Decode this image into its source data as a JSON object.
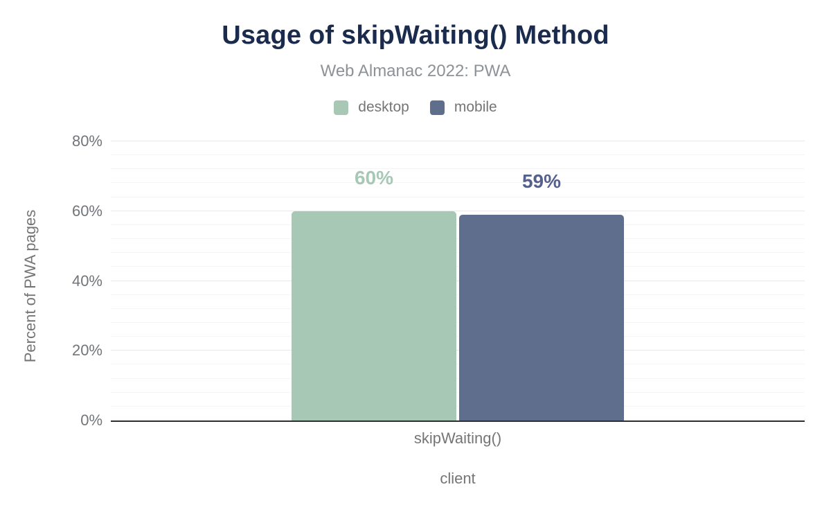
{
  "chart_data": {
    "type": "bar",
    "title": "Usage of skipWaiting() Method",
    "subtitle": "Web Almanac 2022: PWA",
    "categories": [
      "skipWaiting()"
    ],
    "series": [
      {
        "name": "desktop",
        "values": [
          60
        ],
        "value_labels": [
          "60%"
        ],
        "color": "#a6c8b5",
        "label_color": "#a6c8b5"
      },
      {
        "name": "mobile",
        "values": [
          59
        ],
        "value_labels": [
          "59%"
        ],
        "color": "#5e6e8c",
        "label_color": "#55618a"
      }
    ],
    "xlabel": "client",
    "ylabel": "Percent of PWA pages",
    "ylim": [
      0,
      80
    ],
    "yticks": [
      {
        "label": "0%",
        "value": 0
      },
      {
        "label": "20%",
        "value": 20
      },
      {
        "label": "40%",
        "value": 40
      },
      {
        "label": "60%",
        "value": 60
      },
      {
        "label": "80%",
        "value": 80
      }
    ],
    "major_grid_step": 20,
    "minor_grid_step": 4,
    "grid": true,
    "legend_position": "top",
    "axis_line_color": "#2e2e2e"
  }
}
